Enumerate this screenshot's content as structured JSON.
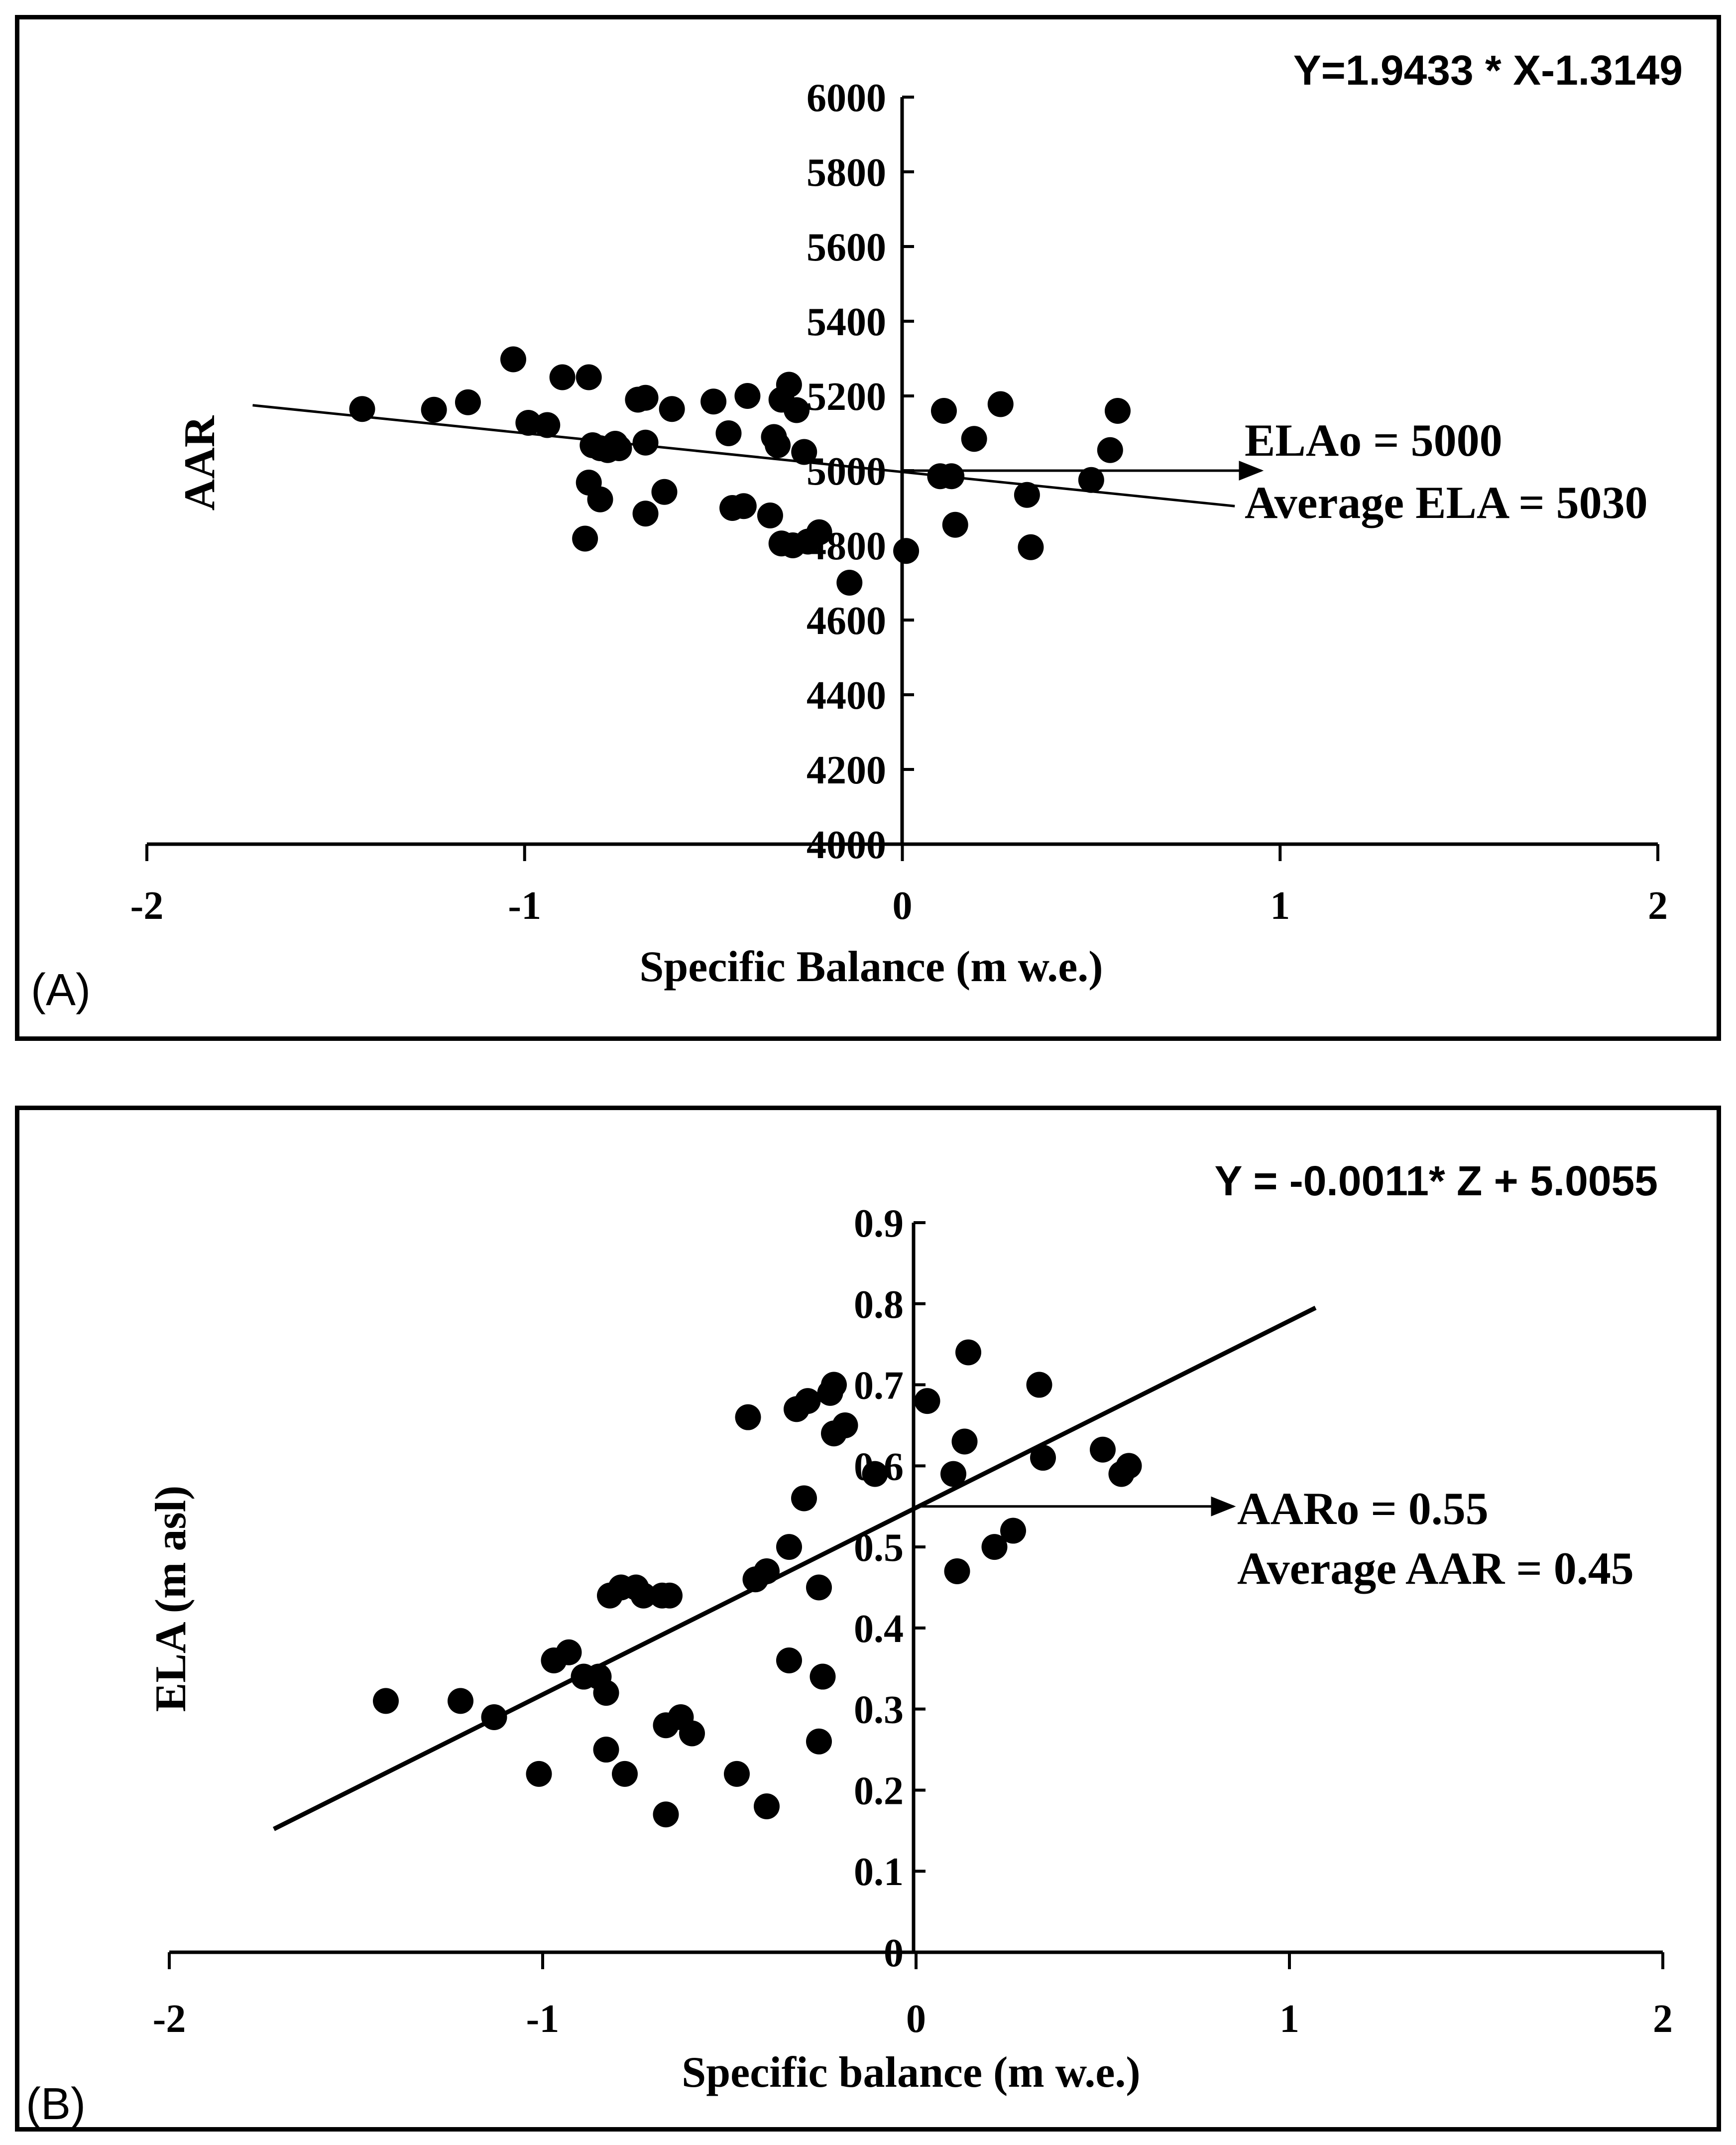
{
  "chart_data": [
    {
      "type": "scatter",
      "panel_label": "(A)",
      "equation": "Y=1.9433 * X-1.3149",
      "xlabel": "Specific Balance (m w.e.)",
      "ylabel": "AAR",
      "xlim": [
        -2,
        2
      ],
      "ylim": [
        4000,
        6000
      ],
      "xticks": [
        "-2",
        "-1",
        "0",
        "1",
        "2"
      ],
      "yticks": [
        "4000",
        "4200",
        "4400",
        "4600",
        "4800",
        "5000",
        "5200",
        "5400",
        "5600",
        "5800",
        "6000"
      ],
      "trendline": {
        "x": [
          -1.72,
          0.88
        ],
        "y": [
          5175,
          4905
        ]
      },
      "arrow": {
        "from": [
          0,
          5000
        ],
        "to": [
          0.95,
          5000
        ]
      },
      "annotations": [
        "ELAo = 5000",
        "Average ELA = 5030"
      ],
      "points": [
        {
          "x": -1.43,
          "y": 5165
        },
        {
          "x": -1.24,
          "y": 5163
        },
        {
          "x": -1.15,
          "y": 5183
        },
        {
          "x": -1.03,
          "y": 5298
        },
        {
          "x": -0.99,
          "y": 5128
        },
        {
          "x": -0.94,
          "y": 5122
        },
        {
          "x": -0.9,
          "y": 5250
        },
        {
          "x": -0.83,
          "y": 5250
        },
        {
          "x": -0.82,
          "y": 5068
        },
        {
          "x": -0.8,
          "y": 5060
        },
        {
          "x": -0.78,
          "y": 5055
        },
        {
          "x": -0.76,
          "y": 5072
        },
        {
          "x": -0.84,
          "y": 4818
        },
        {
          "x": -0.83,
          "y": 4968
        },
        {
          "x": -0.8,
          "y": 4923
        },
        {
          "x": -0.75,
          "y": 5060
        },
        {
          "x": -0.7,
          "y": 5190
        },
        {
          "x": -0.68,
          "y": 5195
        },
        {
          "x": -0.68,
          "y": 5075
        },
        {
          "x": -0.68,
          "y": 4885
        },
        {
          "x": -0.63,
          "y": 4943
        },
        {
          "x": -0.61,
          "y": 5165
        },
        {
          "x": -0.5,
          "y": 5185
        },
        {
          "x": -0.46,
          "y": 5100
        },
        {
          "x": -0.45,
          "y": 4900
        },
        {
          "x": -0.42,
          "y": 4905
        },
        {
          "x": -0.41,
          "y": 5200
        },
        {
          "x": -0.35,
          "y": 4880
        },
        {
          "x": -0.34,
          "y": 5090
        },
        {
          "x": -0.33,
          "y": 5068
        },
        {
          "x": -0.32,
          "y": 5190
        },
        {
          "x": -0.3,
          "y": 5230
        },
        {
          "x": -0.28,
          "y": 5162
        },
        {
          "x": -0.26,
          "y": 5050
        },
        {
          "x": -0.32,
          "y": 4805
        },
        {
          "x": -0.29,
          "y": 4800
        },
        {
          "x": -0.25,
          "y": 4810
        },
        {
          "x": -0.22,
          "y": 4835
        },
        {
          "x": -0.14,
          "y": 4700
        },
        {
          "x": 0.01,
          "y": 4785
        },
        {
          "x": 0.1,
          "y": 4985
        },
        {
          "x": 0.11,
          "y": 5160
        },
        {
          "x": 0.13,
          "y": 4985
        },
        {
          "x": 0.14,
          "y": 4855
        },
        {
          "x": 0.19,
          "y": 5085
        },
        {
          "x": 0.26,
          "y": 5178
        },
        {
          "x": 0.33,
          "y": 4935
        },
        {
          "x": 0.34,
          "y": 4795
        },
        {
          "x": 0.5,
          "y": 4975
        },
        {
          "x": 0.55,
          "y": 5055
        },
        {
          "x": 0.57,
          "y": 5160
        }
      ]
    },
    {
      "type": "scatter",
      "panel_label": "(B)",
      "equation": "Y = -0.0011* Z + 5.0055",
      "xlabel": "Specific balance (m w.e.)",
      "ylabel": "ELA (m asl)",
      "xlim": [
        -2,
        2
      ],
      "ylim": [
        0,
        0.9
      ],
      "xticks": [
        "-2",
        "-1",
        "0",
        "1",
        "2"
      ],
      "yticks": [
        "0",
        "0.1",
        "0.2",
        "0.3",
        "0.4",
        "0.5",
        "0.6",
        "0.7",
        "0.8",
        "0.9"
      ],
      "trendline": {
        "x": [
          -1.72,
          1.07
        ],
        "y": [
          0.152,
          0.795
        ]
      },
      "arrow": {
        "from": [
          0,
          0.55
        ],
        "to": [
          0.85,
          0.55
        ]
      },
      "annotations": [
        "AARo = 0.55",
        "Average AAR = 0.45"
      ],
      "points": [
        {
          "x": -1.42,
          "y": 0.31
        },
        {
          "x": -1.22,
          "y": 0.31
        },
        {
          "x": -1.13,
          "y": 0.29
        },
        {
          "x": -1.01,
          "y": 0.22
        },
        {
          "x": -0.97,
          "y": 0.36
        },
        {
          "x": -0.93,
          "y": 0.37
        },
        {
          "x": -0.89,
          "y": 0.34
        },
        {
          "x": -0.85,
          "y": 0.34
        },
        {
          "x": -0.83,
          "y": 0.32
        },
        {
          "x": -0.83,
          "y": 0.25
        },
        {
          "x": -0.82,
          "y": 0.44
        },
        {
          "x": -0.79,
          "y": 0.45
        },
        {
          "x": -0.78,
          "y": 0.22
        },
        {
          "x": -0.75,
          "y": 0.45
        },
        {
          "x": -0.73,
          "y": 0.44
        },
        {
          "x": -0.68,
          "y": 0.44
        },
        {
          "x": -0.67,
          "y": 0.28
        },
        {
          "x": -0.66,
          "y": 0.44
        },
        {
          "x": -0.67,
          "y": 0.17
        },
        {
          "x": -0.63,
          "y": 0.29
        },
        {
          "x": -0.6,
          "y": 0.27
        },
        {
          "x": -0.48,
          "y": 0.22
        },
        {
          "x": -0.45,
          "y": 0.66
        },
        {
          "x": -0.43,
          "y": 0.46
        },
        {
          "x": -0.4,
          "y": 0.47
        },
        {
          "x": -0.4,
          "y": 0.18
        },
        {
          "x": -0.34,
          "y": 0.5
        },
        {
          "x": -0.34,
          "y": 0.36
        },
        {
          "x": -0.32,
          "y": 0.67
        },
        {
          "x": -0.29,
          "y": 0.68
        },
        {
          "x": -0.3,
          "y": 0.56
        },
        {
          "x": -0.26,
          "y": 0.45
        },
        {
          "x": -0.26,
          "y": 0.26
        },
        {
          "x": -0.25,
          "y": 0.34
        },
        {
          "x": -0.23,
          "y": 0.69
        },
        {
          "x": -0.22,
          "y": 0.7
        },
        {
          "x": -0.22,
          "y": 0.64
        },
        {
          "x": -0.19,
          "y": 0.65
        },
        {
          "x": -0.11,
          "y": 0.59
        },
        {
          "x": 0.03,
          "y": 0.68
        },
        {
          "x": 0.1,
          "y": 0.59
        },
        {
          "x": 0.11,
          "y": 0.47
        },
        {
          "x": 0.13,
          "y": 0.63
        },
        {
          "x": 0.14,
          "y": 0.74
        },
        {
          "x": 0.21,
          "y": 0.5
        },
        {
          "x": 0.26,
          "y": 0.52
        },
        {
          "x": 0.33,
          "y": 0.7
        },
        {
          "x": 0.34,
          "y": 0.61
        },
        {
          "x": 0.5,
          "y": 0.62
        },
        {
          "x": 0.55,
          "y": 0.59
        },
        {
          "x": 0.57,
          "y": 0.6
        }
      ]
    }
  ]
}
